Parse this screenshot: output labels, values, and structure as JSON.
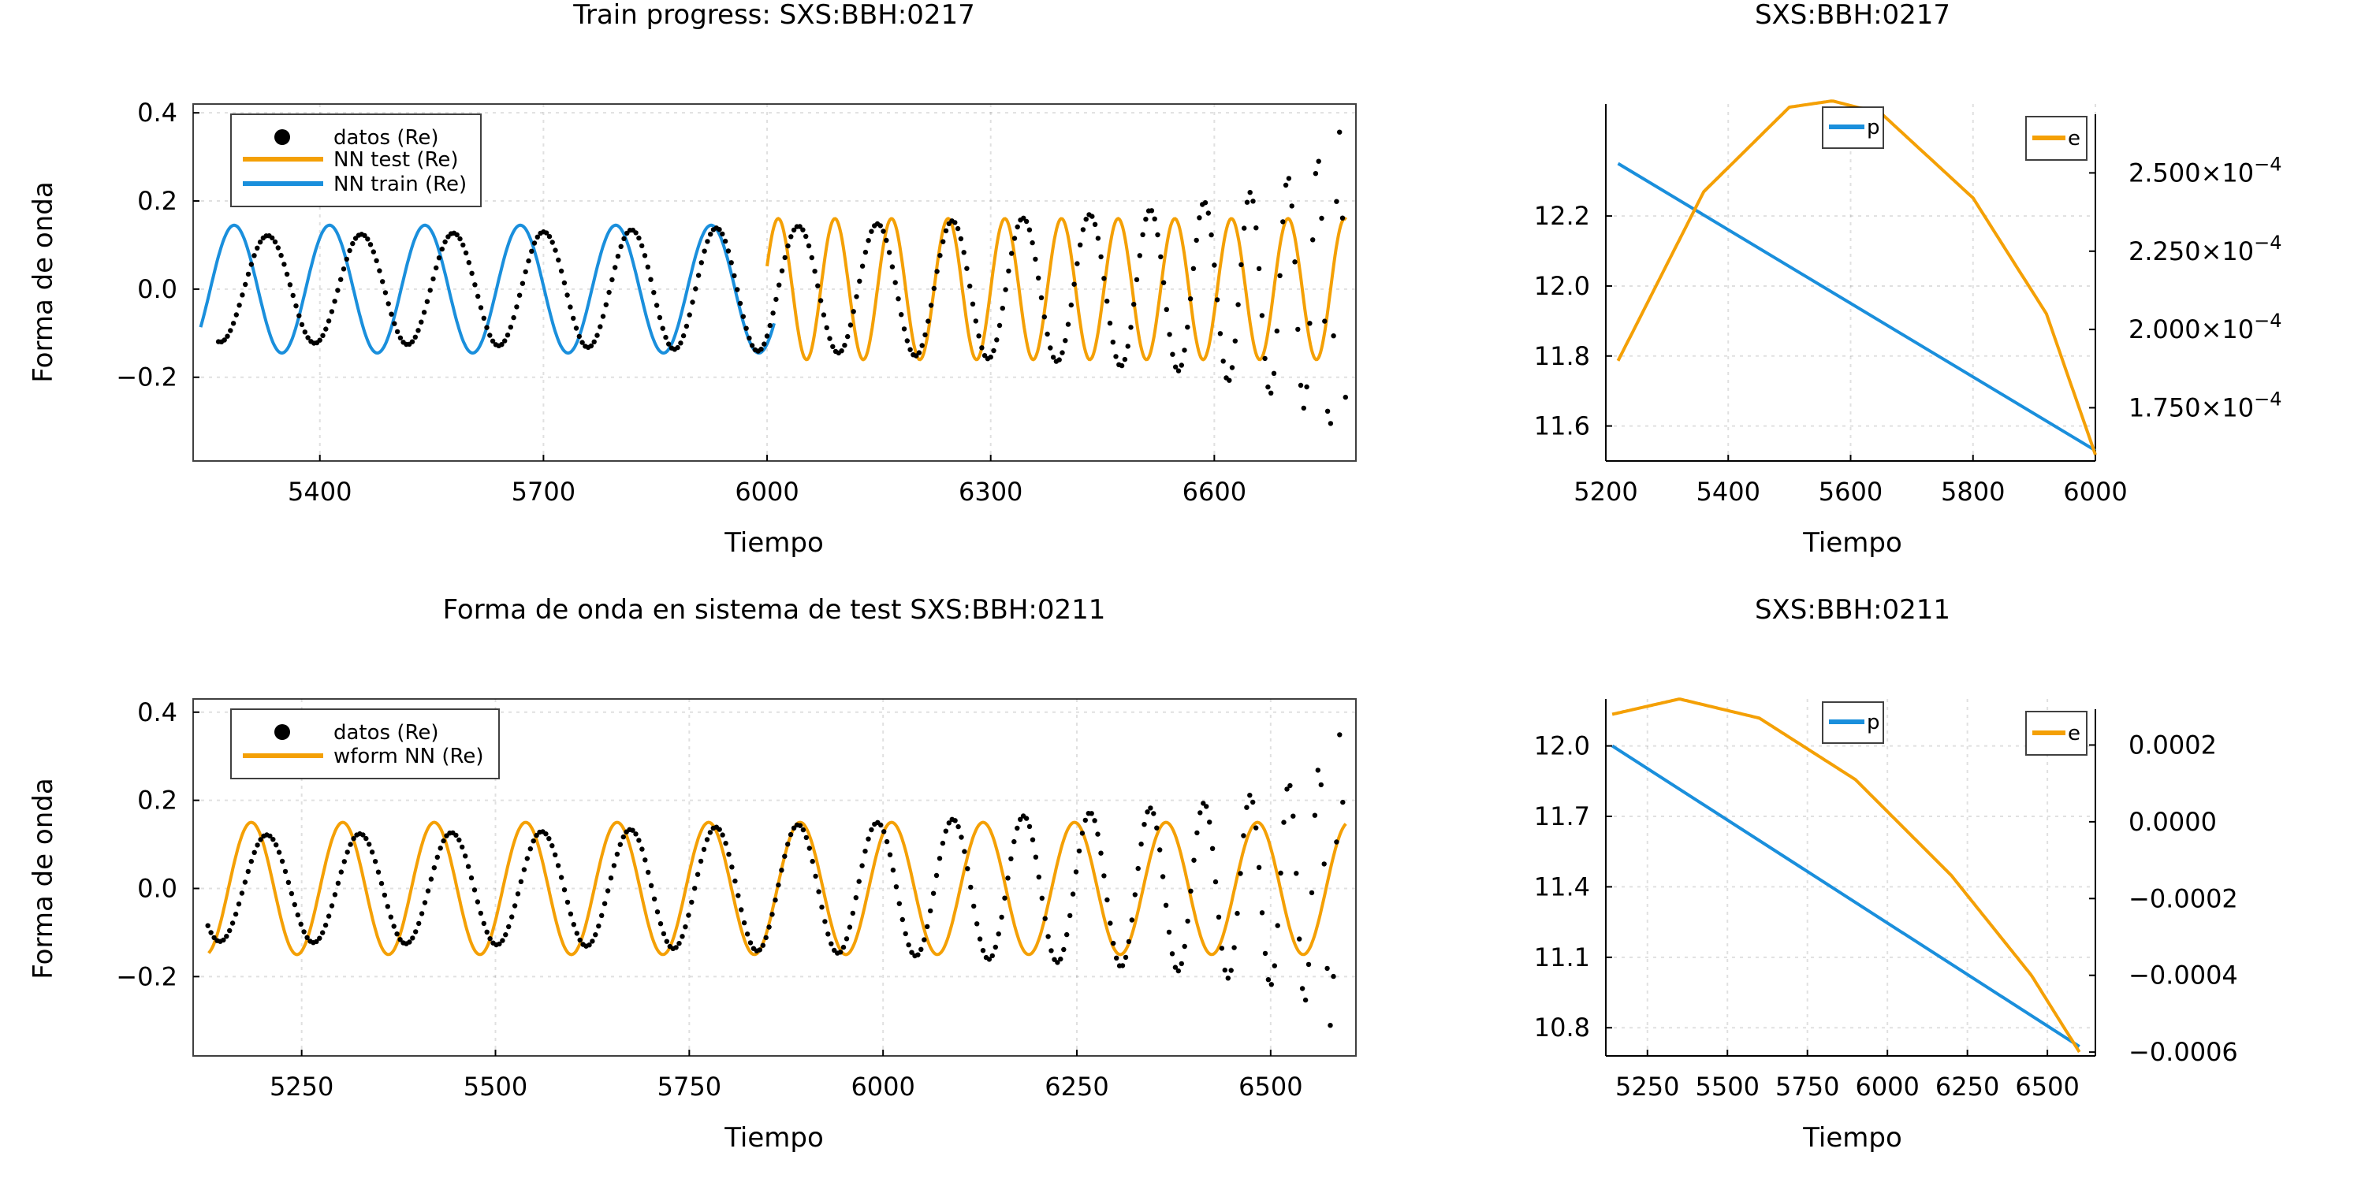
{
  "chart_data": [
    {
      "type": "line",
      "title": "Train progress: SXS:BBH:0217",
      "xlabel": "Tiempo",
      "ylabel": "Forma de onda",
      "xlim": [
        5230,
        6790
      ],
      "ylim": [
        -0.39,
        0.42
      ],
      "xticks": [
        5400,
        5700,
        6000,
        6300,
        6600
      ],
      "yticks": [
        -0.2,
        0.0,
        0.2,
        0.4
      ],
      "yticklabels": [
        "−0.2",
        "0.0",
        "0.2",
        "0.4"
      ],
      "grid": true,
      "legend": "top-left",
      "colors": {
        "datos": "#000000",
        "test": "#f4a005",
        "train": "#1a8fdc"
      },
      "series": [
        {
          "name": "datos (Re)",
          "kind": "scatter",
          "color": "#000000",
          "x_start": 5265,
          "x_end": 6778,
          "amp_points": [
            [
              5265,
              0.12
            ],
            [
              5700,
              0.13
            ],
            [
              6100,
              0.145
            ],
            [
              6400,
              0.165
            ],
            [
              6550,
              0.185
            ],
            [
              6650,
              0.22
            ],
            [
              6720,
              0.27
            ],
            [
              6760,
              0.33
            ],
            [
              6778,
              0.39
            ]
          ],
          "period_points": [
            [
              5265,
              128
            ],
            [
              5700,
              120
            ],
            [
              6100,
              106
            ],
            [
              6400,
              89
            ],
            [
              6550,
              73
            ],
            [
              6650,
              56
            ],
            [
              6720,
              40
            ],
            [
              6760,
              27
            ],
            [
              6778,
              20
            ]
          ],
          "first_peak_x": 5330
        },
        {
          "name": "NN test (Re)",
          "kind": "line",
          "color": "#f4a005",
          "x_start": 6000,
          "x_end": 6778,
          "amplitude": 0.16,
          "period": 76,
          "first_peak_x": 6015
        },
        {
          "name": "NN train (Re)",
          "kind": "line",
          "color": "#1a8fdc",
          "x_start": 5240,
          "x_end": 6010,
          "amplitude": 0.145,
          "period": 128,
          "first_peak_x": 5285
        }
      ]
    },
    {
      "type": "line",
      "title": "SXS:BBH:0217",
      "xlabel": "Tiempo",
      "xlim": [
        5200,
        6000
      ],
      "xticks": [
        5200,
        5400,
        5600,
        5800,
        6000
      ],
      "left_axis": {
        "ylim": [
          11.5,
          12.52
        ],
        "yticks": [
          11.6,
          11.8,
          12.0,
          12.2
        ],
        "yticklabels": [
          "11.6",
          "11.8",
          "12.0",
          "12.2"
        ]
      },
      "right_axis": {
        "ylim": [
          0.000158,
          0.000272
        ],
        "yticks": [
          0.000175,
          0.0002,
          0.000225,
          0.00025
        ],
        "yticklabels": [
          {
            "mant": "1.750×10",
            "exp": "−4"
          },
          {
            "mant": "2.000×10",
            "exp": "−4"
          },
          {
            "mant": "2.250×10",
            "exp": "−4"
          },
          {
            "mant": "2.500×10",
            "exp": "−4"
          }
        ]
      },
      "grid": true,
      "colors": {
        "p": "#1a8fdc",
        "e": "#f4a005"
      },
      "series": [
        {
          "name": "p",
          "axis": "left",
          "color": "#1a8fdc",
          "x": [
            5220,
            6000
          ],
          "y": [
            12.35,
            11.53
          ]
        },
        {
          "name": "e",
          "axis": "right",
          "color": "#f4a005",
          "x": [
            5220,
            5360,
            5500,
            5570,
            5650,
            5800,
            5920,
            6000
          ],
          "y": [
            0.00019,
            0.000244,
            0.000271,
            0.000273,
            0.000269,
            0.000242,
            0.000205,
            0.00016
          ]
        }
      ]
    },
    {
      "type": "line",
      "title": "Forma de onda en sistema de test SXS:BBH:0211",
      "xlabel": "Tiempo",
      "ylabel": "Forma de onda",
      "xlim": [
        5110,
        6610
      ],
      "ylim": [
        -0.38,
        0.43
      ],
      "xticks": [
        5250,
        5500,
        5750,
        6000,
        6250,
        6500
      ],
      "yticks": [
        -0.2,
        0.0,
        0.2,
        0.4
      ],
      "yticklabels": [
        "−0.2",
        "0.0",
        "0.2",
        "0.4"
      ],
      "grid": true,
      "legend": "top-left",
      "colors": {
        "datos": "#000000",
        "wform": "#f4a005"
      },
      "series": [
        {
          "name": "datos (Re)",
          "kind": "scatter",
          "color": "#000000",
          "x_start": 5130,
          "x_end": 6595,
          "amp_points": [
            [
              5130,
              0.12
            ],
            [
              5600,
              0.13
            ],
            [
              6000,
              0.15
            ],
            [
              6250,
              0.17
            ],
            [
              6400,
              0.19
            ],
            [
              6500,
              0.22
            ],
            [
              6560,
              0.27
            ],
            [
              6585,
              0.33
            ],
            [
              6595,
              0.39
            ]
          ],
          "period_points": [
            [
              5130,
              122
            ],
            [
              5600,
              115
            ],
            [
              6000,
              100
            ],
            [
              6250,
              84
            ],
            [
              6400,
              67
            ],
            [
              6500,
              50
            ],
            [
              6560,
              34
            ],
            [
              6585,
              24
            ],
            [
              6595,
              18
            ]
          ],
          "first_peak_x": 5205
        },
        {
          "name": "wform NN (Re)",
          "kind": "line",
          "color": "#f4a005",
          "x_start": 5130,
          "x_end": 6598,
          "amplitude": 0.15,
          "period": 118,
          "first_peak_x": 5185
        }
      ]
    },
    {
      "type": "line",
      "title": "SXS:BBH:0211",
      "xlabel": "Tiempo",
      "xlim": [
        5120,
        6650
      ],
      "xticks": [
        5250,
        5500,
        5750,
        6000,
        6250,
        6500
      ],
      "left_axis": {
        "ylim": [
          10.68,
          12.2
        ],
        "yticks": [
          10.8,
          11.1,
          11.4,
          11.7,
          12.0
        ],
        "yticklabels": [
          "10.8",
          "11.1",
          "11.4",
          "11.7",
          "12.0"
        ]
      },
      "right_axis": {
        "ylim": [
          -0.00061,
          0.00032
        ],
        "yticks": [
          -0.0006,
          -0.0004,
          -0.0002,
          0.0,
          0.0002
        ],
        "yticklabels": [
          "−0.0006",
          "−0.0004",
          "−0.0002",
          "0.0000",
          "0.0002"
        ]
      },
      "grid": true,
      "colors": {
        "p": "#1a8fdc",
        "e": "#f4a005"
      },
      "series": [
        {
          "name": "p",
          "axis": "left",
          "color": "#1a8fdc",
          "x": [
            5140,
            6600
          ],
          "y": [
            12.0,
            10.72
          ]
        },
        {
          "name": "e",
          "axis": "right",
          "color": "#f4a005",
          "x": [
            5140,
            5350,
            5600,
            5900,
            6200,
            6450,
            6600
          ],
          "y": [
            0.00028,
            0.00032,
            0.00027,
            0.00011,
            -0.00014,
            -0.0004,
            -0.0006
          ]
        }
      ]
    }
  ]
}
